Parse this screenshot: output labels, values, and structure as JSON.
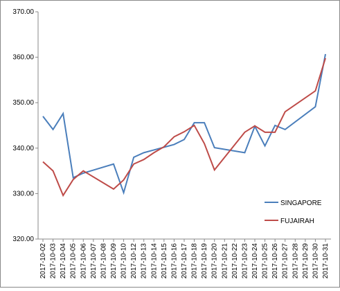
{
  "chart_data": {
    "type": "line",
    "categories": [
      "2017-10-02",
      "2017-10-03",
      "2017-10-04",
      "2017-10-05",
      "2017-10-06",
      "2017-10-07",
      "2017-10-08",
      "2017-10-09",
      "2017-10-10",
      "2017-10-12",
      "2017-10-13",
      "2017-10-14",
      "2017-10-15",
      "2017-10-16",
      "2017-10-17",
      "2017-10-18",
      "2017-10-19",
      "2017-10-20",
      "2017-10-21",
      "2017-10-22",
      "2017-10-23",
      "2017-10-24",
      "2017-10-25",
      "2017-10-26",
      "2017-10-27",
      "2017-10-28",
      "2017-10-29",
      "2017-10-30",
      "2017-10-31"
    ],
    "series": [
      {
        "name": "SINGAPORE",
        "color": "#4a7ebb",
        "x": [
          "2017-10-02",
          "2017-10-03",
          "2017-10-04",
          "2017-10-05",
          "2017-10-06",
          "2017-10-09",
          "2017-10-10",
          "2017-10-12",
          "2017-10-13",
          "2017-10-14",
          "2017-10-15",
          "2017-10-16",
          "2017-10-17",
          "2017-10-18",
          "2017-10-19",
          "2017-10-20",
          "2017-10-23",
          "2017-10-24",
          "2017-10-25",
          "2017-10-26",
          "2017-10-27",
          "2017-10-30",
          "2017-10-31"
        ],
        "values": [
          347.0,
          344.1,
          347.6,
          333.5,
          334.5,
          336.5,
          330.2,
          338.0,
          339.0,
          339.6,
          340.2,
          340.8,
          341.9,
          345.6,
          345.6,
          340.1,
          339.0,
          344.8,
          340.5,
          345.0,
          344.1,
          349.1,
          360.7
        ]
      },
      {
        "name": "FUJAIRAH",
        "color": "#be4b48",
        "x": [
          "2017-10-02",
          "2017-10-03",
          "2017-10-04",
          "2017-10-05",
          "2017-10-06",
          "2017-10-09",
          "2017-10-10",
          "2017-10-12",
          "2017-10-13",
          "2017-10-14",
          "2017-10-15",
          "2017-10-16",
          "2017-10-17",
          "2017-10-18",
          "2017-10-19",
          "2017-10-20",
          "2017-10-23",
          "2017-10-24",
          "2017-10-25",
          "2017-10-26",
          "2017-10-27",
          "2017-10-30",
          "2017-10-31"
        ],
        "values": [
          337.0,
          335.0,
          329.6,
          333.1,
          335.0,
          331.0,
          333.0,
          336.5,
          337.5,
          339.0,
          340.3,
          342.5,
          343.6,
          345.0,
          341.0,
          335.2,
          343.5,
          344.9,
          343.5,
          343.5,
          348.0,
          352.6,
          359.8
        ]
      }
    ],
    "ylim": [
      320,
      370
    ],
    "yticks": [
      {
        "value": 320,
        "label": "320.00"
      },
      {
        "value": 330,
        "label": "330.00"
      },
      {
        "value": 340,
        "label": "340.00"
      },
      {
        "value": 350,
        "label": "350.00"
      },
      {
        "value": 360,
        "label": "360.00"
      },
      {
        "value": 370,
        "label": "370.00"
      }
    ],
    "grid": false,
    "legend": "right"
  }
}
